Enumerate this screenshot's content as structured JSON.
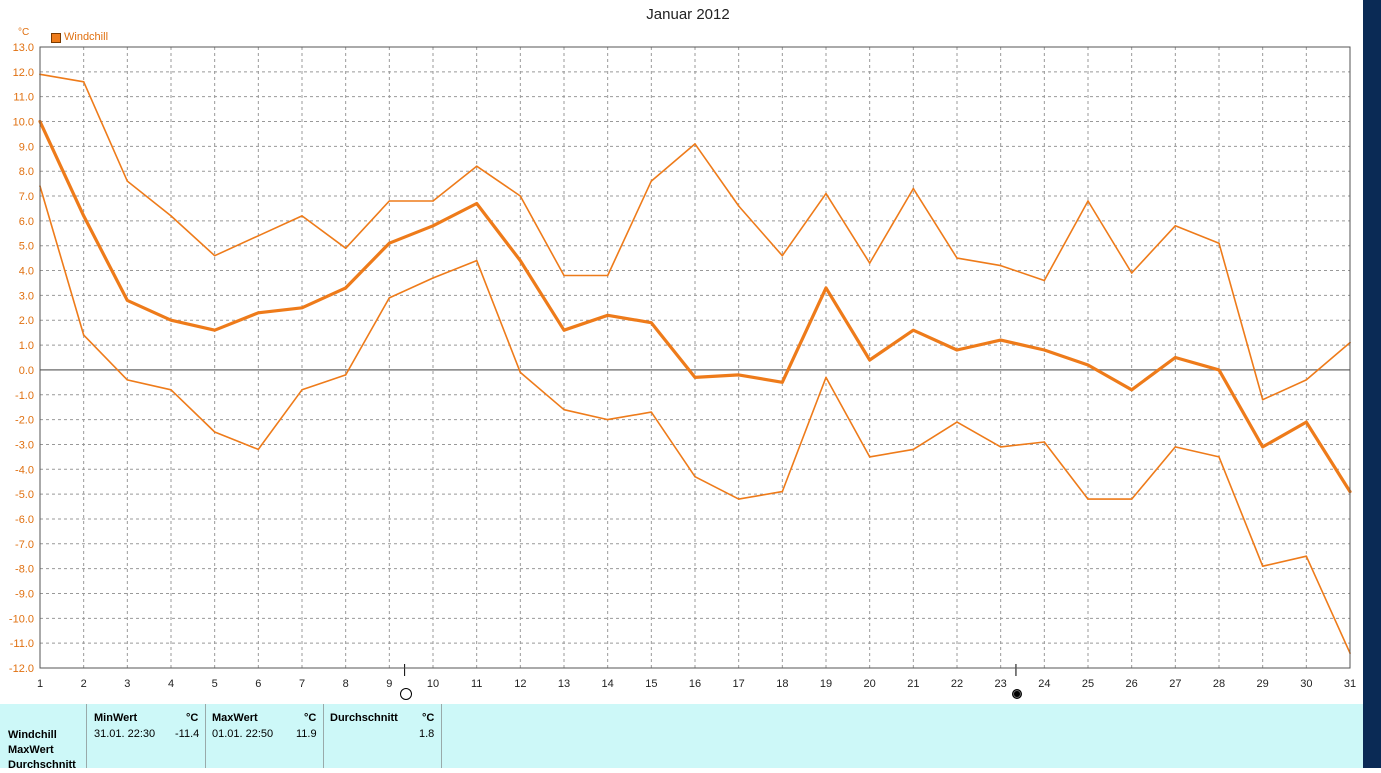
{
  "title": "Januar 2012",
  "unit": "°C",
  "legend": {
    "label": "Windchill",
    "color": "#ee7b1a"
  },
  "chart_data": {
    "type": "line",
    "title": "Januar 2012",
    "ylabel": "°C",
    "ylim": [
      -12,
      13
    ],
    "x": [
      1,
      2,
      3,
      4,
      5,
      6,
      7,
      8,
      9,
      10,
      11,
      12,
      13,
      14,
      15,
      16,
      17,
      18,
      19,
      20,
      21,
      22,
      23,
      24,
      25,
      26,
      27,
      28,
      29,
      30,
      31
    ],
    "yticks": [
      "13.0",
      "12.0",
      "11.0",
      "10.0",
      "9.0",
      "8.0",
      "7.0",
      "6.0",
      "5.0",
      "4.0",
      "3.0",
      "2.0",
      "1.0",
      "0.0",
      "-1.0",
      "-2.0",
      "-3.0",
      "-4.0",
      "-5.0",
      "-6.0",
      "-7.0",
      "-8.0",
      "-9.0",
      "-10.0",
      "-11.0",
      "-12.0"
    ],
    "xticks": [
      "1",
      "2",
      "3",
      "4",
      "5",
      "6",
      "7",
      "8",
      "9",
      "10",
      "11",
      "12",
      "13",
      "14",
      "15",
      "16",
      "17",
      "18",
      "19",
      "20",
      "21",
      "22",
      "23",
      "24",
      "25",
      "26",
      "27",
      "28",
      "29",
      "30",
      "31"
    ],
    "grid": true,
    "legend_position": "top-left",
    "series": [
      {
        "name": "Windchill",
        "role": "max",
        "values": [
          11.9,
          11.6,
          7.6,
          6.2,
          4.6,
          5.4,
          6.2,
          4.9,
          6.8,
          6.8,
          8.2,
          7.0,
          3.8,
          3.8,
          7.6,
          9.1,
          6.6,
          4.6,
          7.1,
          4.3,
          7.3,
          4.5,
          4.2,
          3.6,
          6.8,
          3.9,
          5.8,
          5.1,
          -1.2,
          -0.4,
          1.1
        ]
      },
      {
        "name": "Windchill",
        "role": "avg",
        "values": [
          10.0,
          6.2,
          2.8,
          2.0,
          1.6,
          2.3,
          2.5,
          3.3,
          5.1,
          5.8,
          6.7,
          4.4,
          1.6,
          2.2,
          1.9,
          -0.3,
          -0.2,
          -0.5,
          3.3,
          0.4,
          1.6,
          0.8,
          1.2,
          0.8,
          0.2,
          -0.8,
          0.5,
          0.0,
          -3.1,
          -2.1,
          -4.9
        ]
      },
      {
        "name": "Windchill",
        "role": "min",
        "values": [
          7.4,
          1.4,
          -0.4,
          -0.8,
          -2.5,
          -3.2,
          -0.8,
          -0.2,
          2.9,
          3.7,
          4.4,
          -0.1,
          -1.6,
          -2.0,
          -1.7,
          -4.3,
          -5.2,
          -4.9,
          -0.3,
          -3.5,
          -3.2,
          -2.1,
          -3.1,
          -2.9,
          -5.2,
          -5.2,
          -3.1,
          -3.5,
          -7.9,
          -7.5,
          -11.4
        ]
      }
    ],
    "moon_phases": [
      {
        "day_position": 9.35,
        "phase": "full-moon"
      },
      {
        "day_position": 23.35,
        "phase": "new-moon"
      }
    ]
  },
  "stats": {
    "row_labels": [
      "Windchill",
      "MaxWert",
      "Durchschnitt"
    ],
    "min": {
      "head": "MinWert",
      "unit": "°C",
      "date": "31.01.  22:30",
      "value": "-11.4"
    },
    "max": {
      "head": "MaxWert",
      "unit": "°C",
      "date": "01.01.  22:50",
      "value": "11.9"
    },
    "avg": {
      "head": "Durchschnitt",
      "unit": "°C",
      "value": "1.8"
    }
  }
}
